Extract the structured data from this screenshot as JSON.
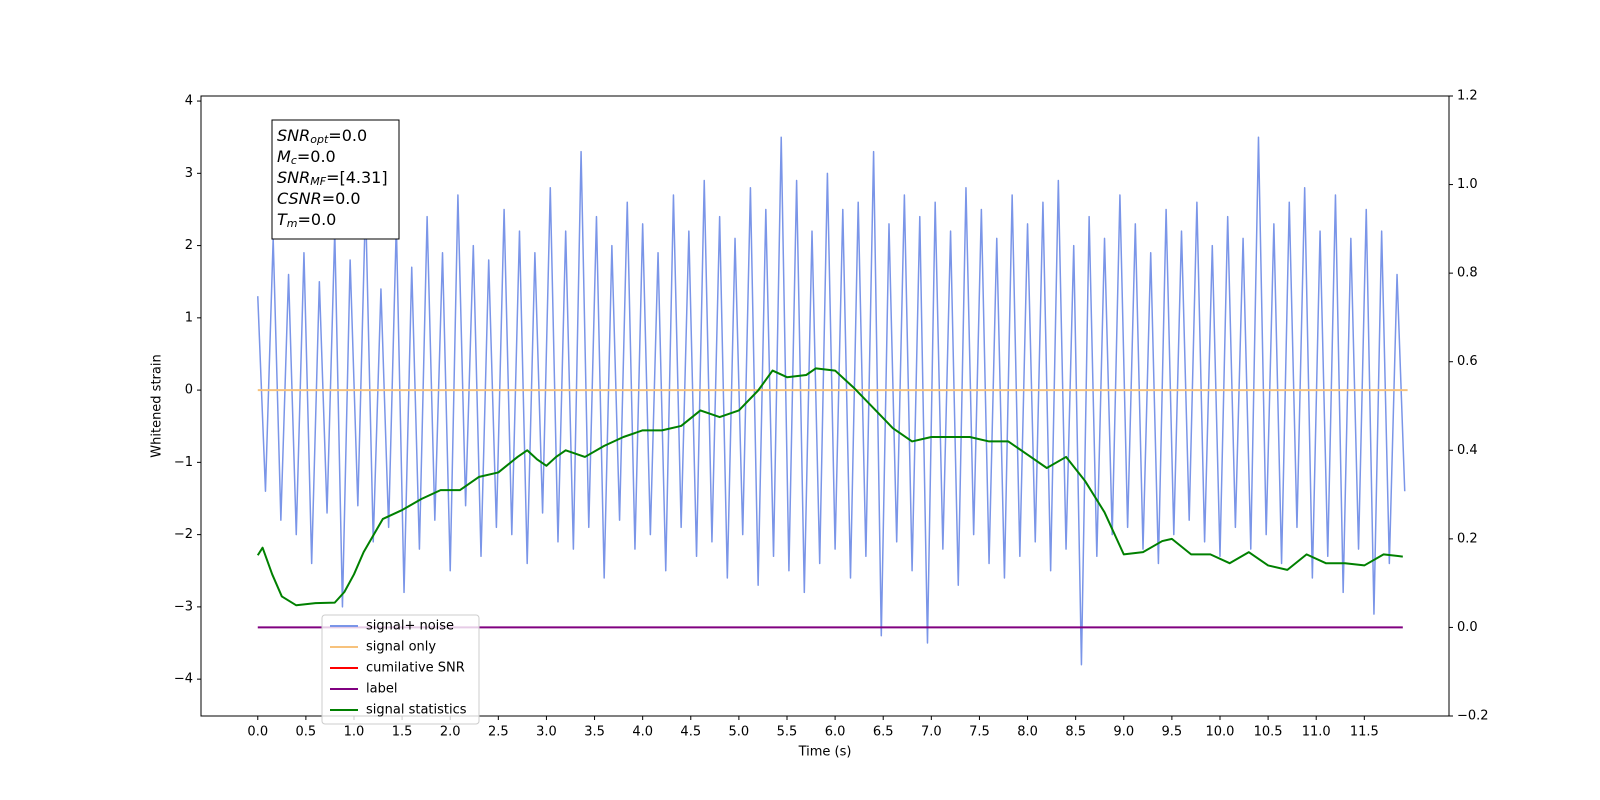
{
  "chart_data": {
    "type": "line",
    "xlabel": "Time (s)",
    "ylabel": "Whitened strain",
    "xlim": [
      -0.59,
      12.38
    ],
    "ylim": [
      -4.51,
      4.07
    ],
    "y2lim": [
      -0.2,
      1.2
    ],
    "xticks": [
      {
        "value": 0,
        "label": "0.0"
      },
      0.5,
      {
        "value": 1,
        "label": "1.0"
      },
      1.5,
      {
        "value": 2,
        "label": "2.0"
      },
      2.5,
      {
        "value": 3,
        "label": "3.0"
      },
      3.5,
      {
        "value": 4,
        "label": "4.0"
      },
      4.5,
      {
        "value": 5,
        "label": "5.0"
      },
      5.5,
      {
        "value": 6,
        "label": "6.0"
      },
      6.5,
      {
        "value": 7,
        "label": "7.0"
      },
      7.5,
      {
        "value": 8,
        "label": "8.0"
      },
      8.5,
      {
        "value": 9,
        "label": "9.0"
      },
      9.5,
      {
        "value": 10,
        "label": "10.0"
      },
      10.5,
      {
        "value": 11,
        "label": "11.0"
      },
      11.5
    ],
    "yticks": [
      {
        "value": -4,
        "label": "−4"
      },
      {
        "value": -3,
        "label": "−3"
      },
      {
        "value": -2,
        "label": "−2"
      },
      {
        "value": -1,
        "label": "−1"
      },
      0,
      1,
      2,
      3,
      4
    ],
    "y2ticks": [
      {
        "value": -0.2,
        "label": "−0.2"
      },
      {
        "value": 0,
        "label": "0.0"
      },
      {
        "value": 0.2,
        "label": "0.2"
      },
      {
        "value": 0.4,
        "label": "0.4"
      },
      {
        "value": 0.6,
        "label": "0.6"
      },
      {
        "value": 0.8,
        "label": "0.8"
      },
      {
        "value": 1,
        "label": "1.0"
      },
      {
        "value": 1.2,
        "label": "1.2"
      }
    ],
    "legend": "lower left",
    "annotation": [
      {
        "symbol": "SNR",
        "sub": "opt",
        "text": "=0.0"
      },
      {
        "symbol": "M",
        "sub": "c",
        "text": "=0.0"
      },
      {
        "symbol": "SNR",
        "sub": "MF",
        "text": "=[4.31]"
      },
      {
        "symbol": "CSNR",
        "text": "=0.0"
      },
      {
        "symbol": "T",
        "sub": "m",
        "text": "=0.0"
      }
    ],
    "series": [
      {
        "name": "signal+ noise",
        "color": "#7a95e8",
        "x": [
          0,
          0.08,
          0.16,
          0.24,
          0.32,
          0.4,
          0.48,
          0.56,
          0.64,
          0.72,
          0.8,
          0.88,
          0.96,
          1.04,
          1.12,
          1.2,
          1.28,
          1.36,
          1.44,
          1.52,
          1.6,
          1.68,
          1.76,
          1.84,
          1.92,
          2,
          2.08,
          2.16,
          2.24,
          2.32,
          2.4,
          2.48,
          2.56,
          2.64,
          2.72,
          2.8,
          2.88,
          2.96,
          3.04,
          3.12,
          3.2,
          3.28,
          3.36,
          3.44,
          3.52,
          3.6,
          3.68,
          3.76,
          3.84,
          3.92,
          4,
          4.08,
          4.16,
          4.24,
          4.32,
          4.4,
          4.48,
          4.56,
          4.64,
          4.72,
          4.8,
          4.88,
          4.96,
          5.04,
          5.12,
          5.2,
          5.28,
          5.36,
          5.44,
          5.52,
          5.6,
          5.68,
          5.76,
          5.84,
          5.92,
          6,
          6.08,
          6.16,
          6.24,
          6.32,
          6.4,
          6.48,
          6.56,
          6.64,
          6.72,
          6.8,
          6.88,
          6.96,
          7.04,
          7.12,
          7.2,
          7.28,
          7.36,
          7.44,
          7.52,
          7.6,
          7.68,
          7.76,
          7.84,
          7.92,
          8,
          8.08,
          8.16,
          8.24,
          8.32,
          8.4,
          8.48,
          8.56,
          8.64,
          8.72,
          8.8,
          8.88,
          8.96,
          9.04,
          9.12,
          9.2,
          9.28,
          9.36,
          9.44,
          9.52,
          9.6,
          9.68,
          9.76,
          9.84,
          9.92,
          10,
          10.08,
          10.16,
          10.24,
          10.32,
          10.4,
          10.48,
          10.56,
          10.64,
          10.72,
          10.8,
          10.88,
          10.96,
          11.04,
          11.12,
          11.2,
          11.28,
          11.36,
          11.44,
          11.52,
          11.6,
          11.68,
          11.76,
          11.84,
          11.92
        ],
        "values": [
          1.3,
          -1.4,
          2.1,
          -1.8,
          1.6,
          -2.0,
          1.9,
          -2.4,
          1.5,
          -1.7,
          2.2,
          -3.0,
          1.8,
          -1.6,
          2.6,
          -2.1,
          1.4,
          -1.9,
          2.3,
          -2.8,
          1.7,
          -2.2,
          2.4,
          -1.8,
          1.9,
          -2.5,
          2.7,
          -1.6,
          2.0,
          -2.3,
          1.8,
          -1.9,
          2.5,
          -2.0,
          2.2,
          -2.4,
          1.9,
          -1.7,
          2.8,
          -2.1,
          2.2,
          -2.2,
          3.3,
          -1.9,
          2.4,
          -2.6,
          2.0,
          -1.8,
          2.6,
          -2.2,
          2.3,
          -2.0,
          1.9,
          -2.5,
          2.7,
          -1.9,
          2.2,
          -2.3,
          2.9,
          -2.1,
          2.4,
          -2.6,
          2.1,
          -2.0,
          2.8,
          -2.7,
          2.5,
          -2.3,
          3.5,
          -2.5,
          2.9,
          -2.8,
          2.2,
          -2.4,
          3.0,
          -2.2,
          2.5,
          -2.6,
          2.6,
          -2.3,
          3.3,
          -3.4,
          2.3,
          -2.1,
          2.7,
          -2.5,
          2.4,
          -3.5,
          2.6,
          -2.2,
          2.2,
          -2.7,
          2.8,
          -2.0,
          2.5,
          -2.4,
          2.1,
          -2.6,
          2.7,
          -2.3,
          2.3,
          -2.1,
          2.6,
          -2.5,
          2.9,
          -2.2,
          2.0,
          -3.8,
          2.4,
          -2.3,
          2.1,
          -2.0,
          2.7,
          -1.9,
          2.3,
          -2.2,
          1.9,
          -2.4,
          2.5,
          -2.0,
          2.2,
          -1.8,
          2.6,
          -2.1,
          2.0,
          -2.3,
          2.4,
          -1.9,
          2.1,
          -2.2,
          3.5,
          -2.0,
          2.3,
          -2.4,
          2.6,
          -1.9,
          2.8,
          -2.6,
          2.2,
          -2.3,
          2.7,
          -2.8,
          2.1,
          -2.2,
          2.5,
          -3.1,
          2.2,
          -2.4,
          1.6,
          -1.4
        ]
      },
      {
        "name": "signal only",
        "color": "#f7c27c",
        "x": [
          0,
          11.95
        ],
        "values": [
          0,
          0
        ]
      },
      {
        "name": "cumilative SNR",
        "color": "#ff0000",
        "x": [],
        "values": []
      },
      {
        "name": "label",
        "color": "#800080",
        "axis": "y2",
        "x": [
          0,
          11.9
        ],
        "values": [
          0,
          0
        ]
      },
      {
        "name": "signal statistics",
        "color": "#008000",
        "axis": "y2",
        "x": [
          0,
          0.05,
          0.15,
          0.25,
          0.4,
          0.6,
          0.8,
          0.9,
          1.0,
          1.1,
          1.3,
          1.5,
          1.7,
          1.9,
          2.1,
          2.3,
          2.5,
          2.7,
          2.8,
          2.9,
          3.0,
          3.1,
          3.2,
          3.4,
          3.6,
          3.8,
          4.0,
          4.2,
          4.4,
          4.6,
          4.8,
          5.0,
          5.2,
          5.35,
          5.5,
          5.7,
          5.8,
          6.0,
          6.2,
          6.4,
          6.6,
          6.8,
          7.0,
          7.2,
          7.4,
          7.6,
          7.8,
          8.0,
          8.2,
          8.4,
          8.6,
          8.8,
          9.0,
          9.2,
          9.4,
          9.5,
          9.7,
          9.9,
          10.1,
          10.3,
          10.5,
          10.7,
          10.9,
          11.1,
          11.3,
          11.5,
          11.7,
          11.9
        ],
        "values": [
          0.163,
          0.18,
          0.12,
          0.07,
          0.05,
          0.055,
          0.056,
          0.08,
          0.12,
          0.17,
          0.245,
          0.265,
          0.29,
          0.31,
          0.31,
          0.34,
          0.35,
          0.385,
          0.4,
          0.38,
          0.365,
          0.385,
          0.4,
          0.385,
          0.41,
          0.43,
          0.445,
          0.445,
          0.455,
          0.49,
          0.475,
          0.49,
          0.535,
          0.58,
          0.565,
          0.57,
          0.585,
          0.58,
          0.54,
          0.495,
          0.45,
          0.42,
          0.43,
          0.43,
          0.43,
          0.42,
          0.42,
          0.39,
          0.36,
          0.385,
          0.33,
          0.26,
          0.165,
          0.17,
          0.195,
          0.2,
          0.165,
          0.165,
          0.145,
          0.17,
          0.14,
          0.13,
          0.165,
          0.145,
          0.145,
          0.14,
          0.165,
          0.16
        ]
      }
    ]
  }
}
